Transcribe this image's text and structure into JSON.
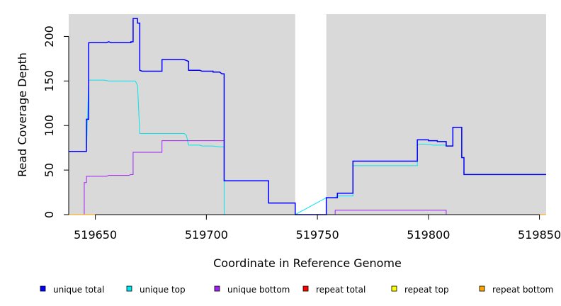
{
  "chart_data": {
    "type": "line",
    "step": true,
    "xlabel": "Coordinate in Reference Genome",
    "ylabel": "Read Coverage Depth",
    "xlim": [
      519638,
      519853
    ],
    "ylim": [
      0,
      225
    ],
    "x_ticks": [
      519650,
      519700,
      519750,
      519800,
      519850
    ],
    "y_ticks": [
      0,
      50,
      100,
      150,
      200
    ],
    "panel_color": "#d9d9d9",
    "gap_region": [
      519740,
      519754
    ],
    "legend_position": "bottom",
    "legend": [
      {
        "label": "unique total",
        "color": "#0000ff"
      },
      {
        "label": "unique top",
        "color": "#00e5ee"
      },
      {
        "label": "unique bottom",
        "color": "#a020f0"
      },
      {
        "label": "repeat total",
        "color": "#ff0000"
      },
      {
        "label": "repeat top",
        "color": "#ffff00"
      },
      {
        "label": "repeat bottom",
        "color": "#ffa500"
      }
    ],
    "series": [
      {
        "name": "unique top",
        "color": "#00e5ee",
        "width": 1,
        "points": [
          [
            519638,
            71
          ],
          [
            519646,
            71
          ],
          [
            519647,
            151
          ],
          [
            519654,
            151
          ],
          [
            519656,
            150
          ],
          [
            519668,
            150
          ],
          [
            519669,
            145
          ],
          [
            519670,
            91
          ],
          [
            519690,
            91
          ],
          [
            519691,
            89
          ],
          [
            519692,
            78
          ],
          [
            519697,
            78
          ],
          [
            519698,
            77
          ],
          [
            519703,
            77
          ],
          [
            519706,
            76
          ],
          [
            519708,
            76
          ],
          [
            519708,
            0
          ],
          [
            519740,
            0
          ],
          [
            519754,
            19
          ],
          [
            519758,
            19
          ],
          [
            519759,
            21
          ],
          [
            519766,
            21
          ],
          [
            519766,
            55
          ],
          [
            519795,
            55
          ],
          [
            519795,
            79
          ],
          [
            519800,
            79
          ],
          [
            519802,
            78
          ],
          [
            519808,
            78
          ],
          [
            519808,
            77
          ],
          [
            519811,
            77
          ],
          [
            519811,
            98
          ],
          [
            519815,
            98
          ],
          [
            519815,
            64
          ],
          [
            519816,
            64
          ],
          [
            519816,
            45
          ],
          [
            519853,
            45
          ]
        ]
      },
      {
        "name": "unique bottom",
        "color": "#a020f0",
        "width": 1,
        "points": [
          [
            519638,
            0
          ],
          [
            519645,
            0
          ],
          [
            519645,
            36
          ],
          [
            519646,
            36
          ],
          [
            519646,
            43
          ],
          [
            519655,
            43
          ],
          [
            519656,
            44
          ],
          [
            519665,
            44
          ],
          [
            519666,
            45
          ],
          [
            519667,
            45
          ],
          [
            519667,
            70
          ],
          [
            519680,
            70
          ],
          [
            519680,
            83
          ],
          [
            519708,
            83
          ],
          [
            519708,
            38
          ],
          [
            519728,
            38
          ],
          [
            519728,
            13
          ],
          [
            519740,
            13
          ],
          [
            519740,
            0
          ],
          [
            519758,
            0
          ],
          [
            519758,
            5
          ],
          [
            519808,
            5
          ],
          [
            519808,
            0
          ],
          [
            519853,
            0
          ]
        ]
      },
      {
        "name": "repeat bottom",
        "color": "#ffa500",
        "width": 1,
        "points": [
          [
            519638,
            0
          ],
          [
            519853,
            0
          ]
        ]
      },
      {
        "name": "unique total",
        "color": "#0000ff",
        "width": 1.5,
        "points": [
          [
            519638,
            71
          ],
          [
            519646,
            71
          ],
          [
            519646,
            107
          ],
          [
            519647,
            107
          ],
          [
            519647,
            193
          ],
          [
            519655,
            193
          ],
          [
            519656,
            194
          ],
          [
            519657,
            193
          ],
          [
            519666,
            193
          ],
          [
            519666,
            194
          ],
          [
            519667,
            194
          ],
          [
            519667,
            220
          ],
          [
            519669,
            220
          ],
          [
            519669,
            215
          ],
          [
            519670,
            215
          ],
          [
            519670,
            162
          ],
          [
            519671,
            161
          ],
          [
            519680,
            161
          ],
          [
            519680,
            174
          ],
          [
            519690,
            174
          ],
          [
            519691,
            173
          ],
          [
            519692,
            172
          ],
          [
            519692,
            162
          ],
          [
            519697,
            162
          ],
          [
            519698,
            161
          ],
          [
            519703,
            161
          ],
          [
            519703,
            160
          ],
          [
            519706,
            160
          ],
          [
            519707,
            158
          ],
          [
            519708,
            158
          ],
          [
            519708,
            38
          ],
          [
            519728,
            38
          ],
          [
            519728,
            13
          ],
          [
            519740,
            13
          ],
          [
            519740,
            0
          ],
          [
            519754,
            0
          ],
          [
            519754,
            19
          ],
          [
            519759,
            19
          ],
          [
            519759,
            24
          ],
          [
            519766,
            24
          ],
          [
            519766,
            60
          ],
          [
            519795,
            60
          ],
          [
            519795,
            84
          ],
          [
            519800,
            84
          ],
          [
            519800,
            83
          ],
          [
            519804,
            83
          ],
          [
            519804,
            82
          ],
          [
            519808,
            82
          ],
          [
            519808,
            77
          ],
          [
            519811,
            77
          ],
          [
            519811,
            98
          ],
          [
            519815,
            98
          ],
          [
            519815,
            64
          ],
          [
            519816,
            64
          ],
          [
            519816,
            45
          ],
          [
            519853,
            45
          ]
        ]
      }
    ]
  }
}
